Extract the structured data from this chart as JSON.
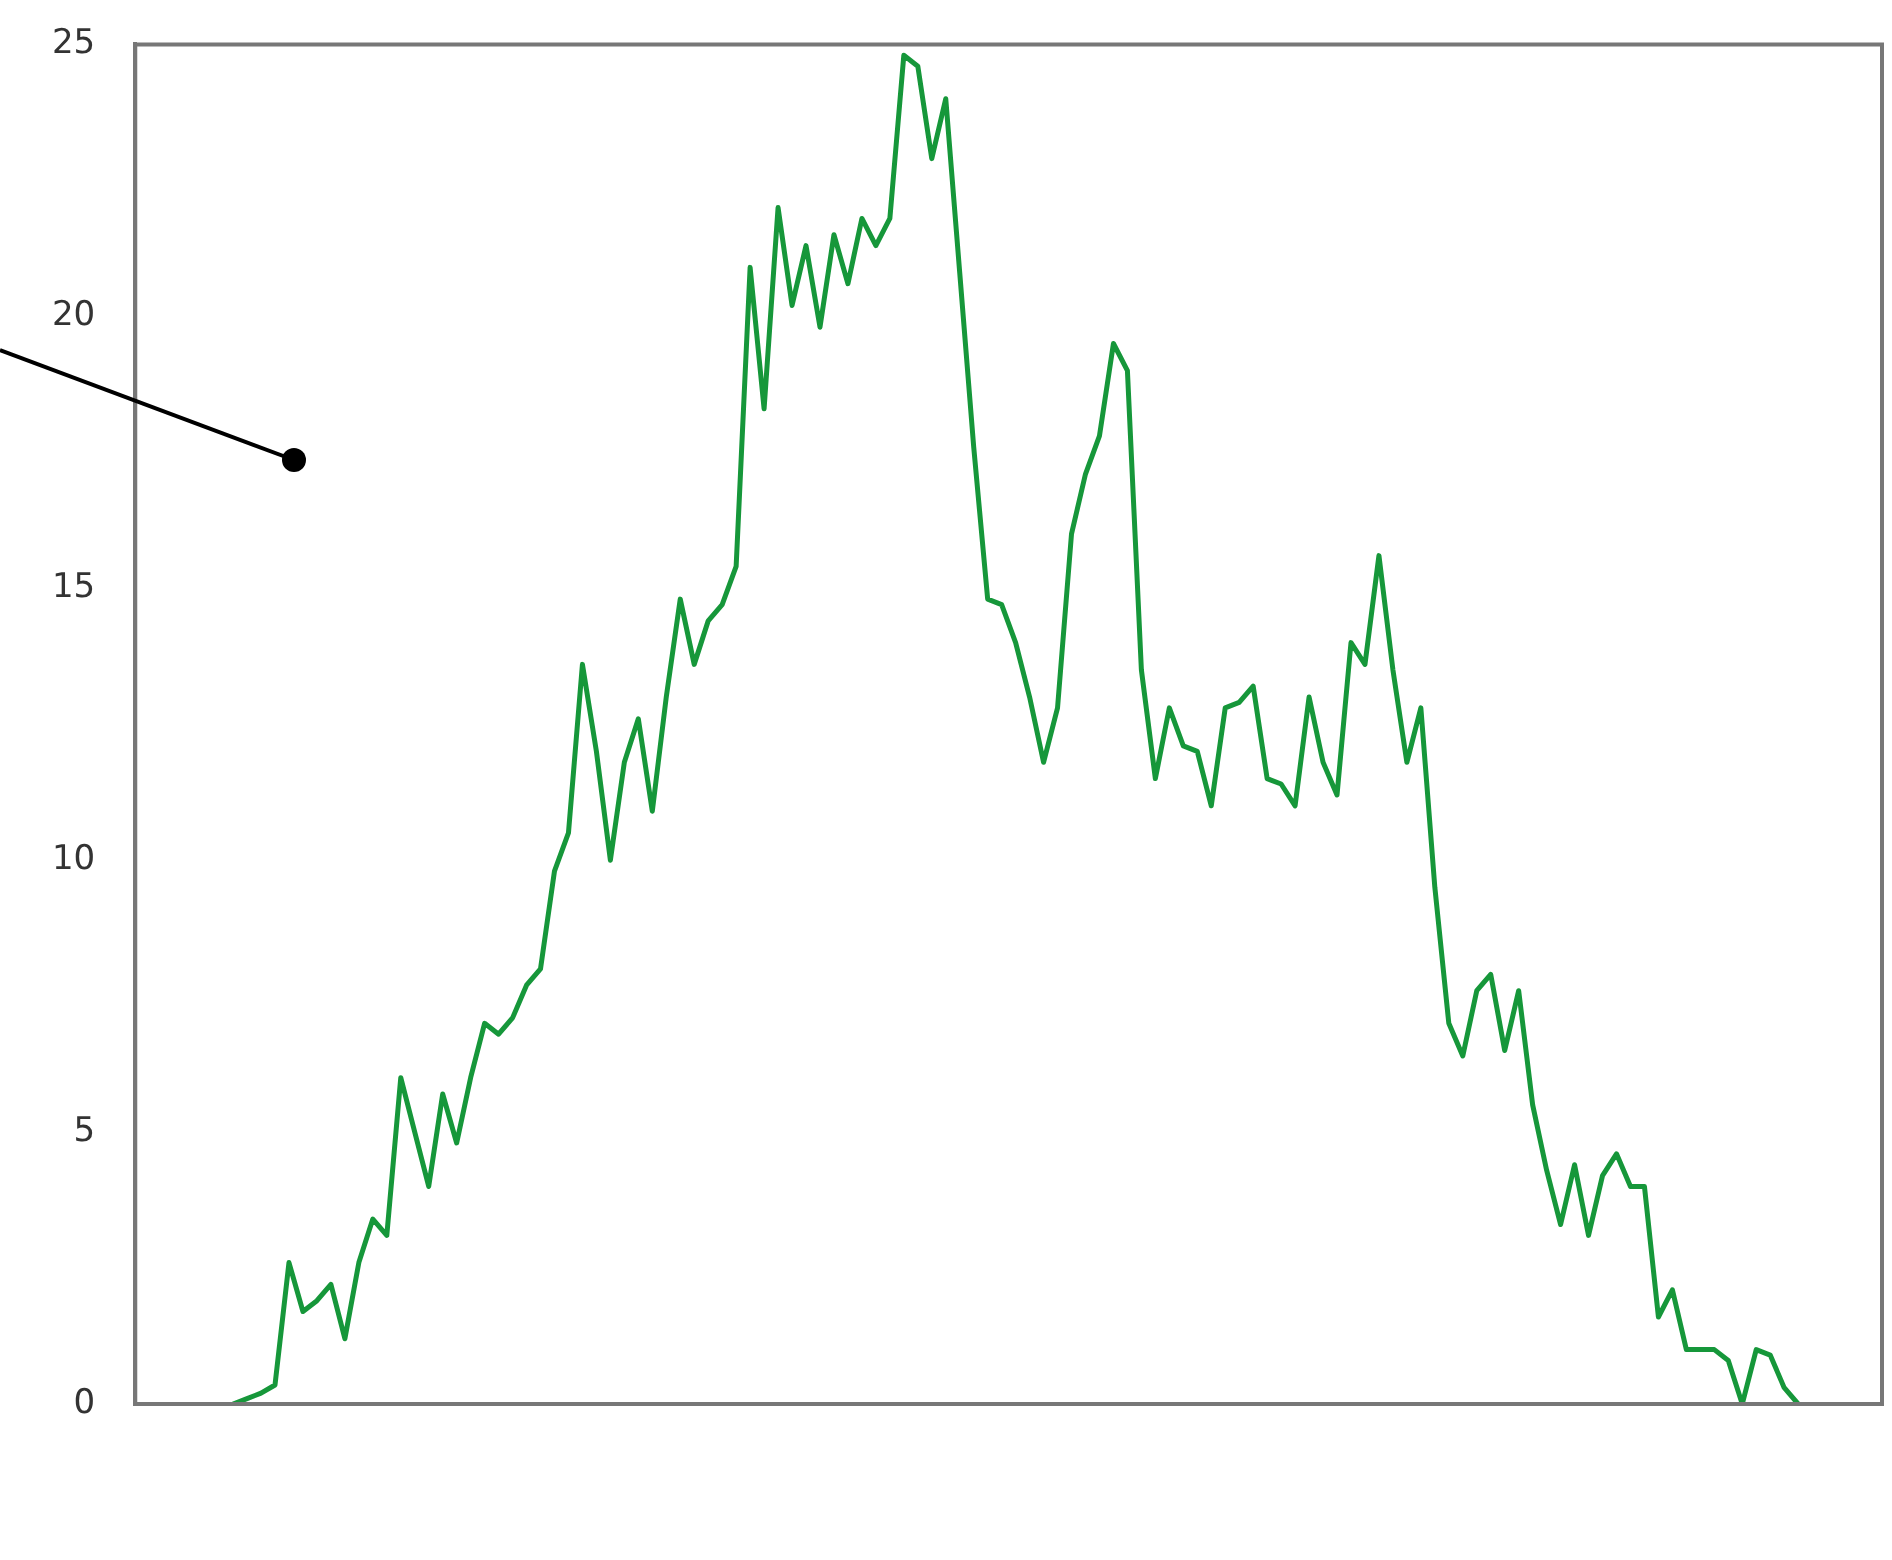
{
  "chart_data": {
    "type": "line",
    "categories": [
      null,
      null,
      null,
      null,
      null,
      null,
      null,
      null,
      null,
      null,
      null,
      null,
      null,
      null,
      null,
      null,
      null,
      null,
      null,
      null,
      null,
      null,
      null,
      null,
      null,
      null,
      null,
      null,
      null,
      null,
      null,
      null,
      null,
      null,
      null,
      null,
      null,
      null,
      null,
      null,
      null,
      null,
      null,
      null,
      null,
      null,
      null,
      null,
      null,
      null,
      null,
      null,
      null,
      null,
      null,
      null,
      null,
      null,
      null,
      null,
      null,
      null,
      null,
      null,
      null,
      null,
      null,
      null,
      null,
      null,
      null,
      null,
      null,
      null,
      null,
      null,
      null,
      null,
      null,
      null,
      null,
      null,
      null,
      null,
      null,
      null,
      null,
      null,
      null,
      null,
      null,
      null,
      null,
      null,
      null,
      null,
      null,
      null,
      null,
      null,
      null,
      null,
      null,
      null,
      null,
      null,
      null,
      null,
      null,
      null,
      null,
      null,
      null,
      null,
      null,
      null,
      null,
      null,
      null,
      null,
      null,
      null,
      null,
      null,
      null,
      null
    ],
    "series": [
      {
        "color": "#16973a",
        "values": [
          null,
          null,
          null,
          null,
          null,
          null,
          null,
          0,
          0.1,
          0.2,
          0.35,
          2.6,
          1.7,
          1.9,
          2.2,
          1.2,
          2.6,
          3.4,
          3.1,
          6.0,
          5.0,
          4.0,
          5.7,
          4.8,
          6.0,
          7.0,
          6.8,
          7.1,
          7.7,
          8.0,
          9.8,
          10.5,
          13.6,
          12.0,
          10.0,
          11.8,
          12.6,
          10.9,
          13.0,
          14.8,
          13.6,
          14.4,
          14.7,
          15.4,
          20.9,
          18.3,
          22.0,
          20.2,
          21.3,
          19.8,
          21.5,
          20.6,
          21.8,
          21.3,
          21.8,
          24.8,
          24.6,
          22.9,
          24.0,
          20.8,
          17.6,
          14.8,
          14.7,
          14.0,
          13.0,
          11.8,
          12.8,
          16.0,
          17.1,
          17.8,
          19.5,
          19.0,
          13.5,
          11.5,
          12.8,
          12.1,
          12.0,
          11.0,
          12.8,
          12.9,
          13.2,
          11.5,
          11.4,
          11.0,
          13.0,
          11.8,
          11.2,
          14.0,
          13.6,
          15.6,
          13.5,
          11.8,
          12.8,
          9.5,
          7.0,
          6.4,
          7.6,
          7.9,
          6.5,
          7.6,
          5.5,
          4.3,
          3.3,
          4.4,
          3.1,
          4.2,
          4.6,
          4.0,
          4.0,
          1.6,
          2.1,
          1.0,
          1.0,
          1.0,
          0.8,
          0,
          1.0,
          0.9,
          0.3,
          0,
          null,
          null,
          null,
          null,
          null,
          null
        ]
      }
    ],
    "ylim": [
      0,
      25
    ],
    "yticks": [
      0,
      5,
      10,
      15,
      20,
      25
    ],
    "grid": false,
    "legend": false,
    "marker": "none",
    "line_style": "solid",
    "tick_labels": "y"
  }
}
